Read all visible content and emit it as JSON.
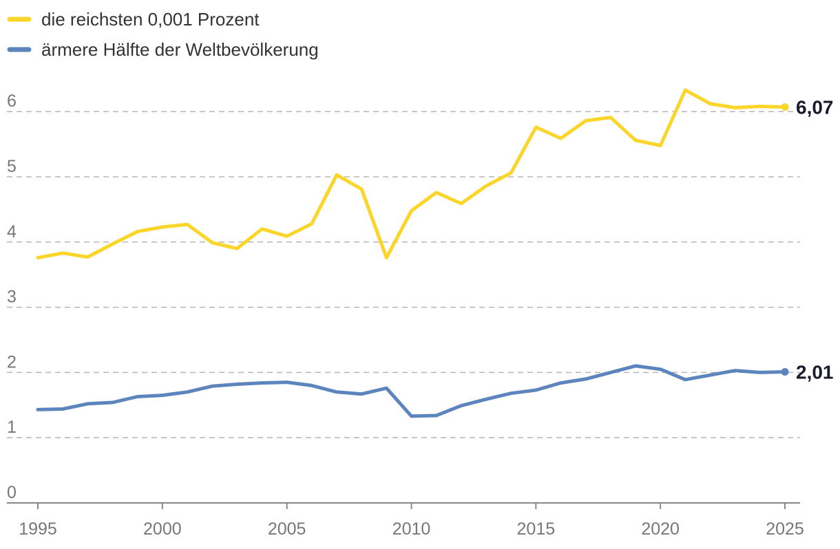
{
  "chart_data": {
    "type": "line",
    "title": "",
    "xlabel": "",
    "ylabel": "",
    "x": [
      1995,
      1996,
      1997,
      1998,
      1999,
      2000,
      2001,
      2002,
      2003,
      2004,
      2005,
      2006,
      2007,
      2008,
      2009,
      2010,
      2011,
      2012,
      2013,
      2014,
      2015,
      2016,
      2017,
      2018,
      2019,
      2020,
      2021,
      2022,
      2023,
      2024,
      2025
    ],
    "xticks": [
      "1995",
      "2000",
      "2005",
      "2010",
      "2015",
      "2020",
      "2025"
    ],
    "yticks": [
      "0",
      "1",
      "2",
      "3",
      "4",
      "5",
      "6"
    ],
    "xlim": [
      1995,
      2025
    ],
    "ylim": [
      0,
      6.4
    ],
    "grid": "horizontal dashed",
    "legend": "top-left",
    "series": [
      {
        "name": "die reichsten 0,001 Prozent",
        "color": "#fcd52b",
        "values": [
          3.76,
          3.83,
          3.77,
          3.97,
          4.16,
          4.23,
          4.27,
          3.99,
          3.9,
          4.2,
          4.09,
          4.28,
          5.03,
          4.81,
          3.76,
          4.48,
          4.76,
          4.59,
          4.86,
          5.06,
          5.76,
          5.59,
          5.86,
          5.91,
          5.56,
          5.48,
          6.33,
          6.12,
          6.06,
          6.08,
          6.07
        ],
        "end_label": "6,07"
      },
      {
        "name": "ärmere Hälfte der Weltbevölkerung",
        "color": "#5d85bd",
        "values": [
          1.43,
          1.44,
          1.52,
          1.54,
          1.63,
          1.65,
          1.7,
          1.79,
          1.82,
          1.84,
          1.85,
          1.8,
          1.7,
          1.67,
          1.76,
          1.33,
          1.34,
          1.49,
          1.59,
          1.68,
          1.73,
          1.84,
          1.9,
          2.0,
          2.1,
          2.05,
          1.89,
          1.96,
          2.03,
          2.0,
          2.01
        ],
        "end_label": "2,01"
      }
    ]
  }
}
